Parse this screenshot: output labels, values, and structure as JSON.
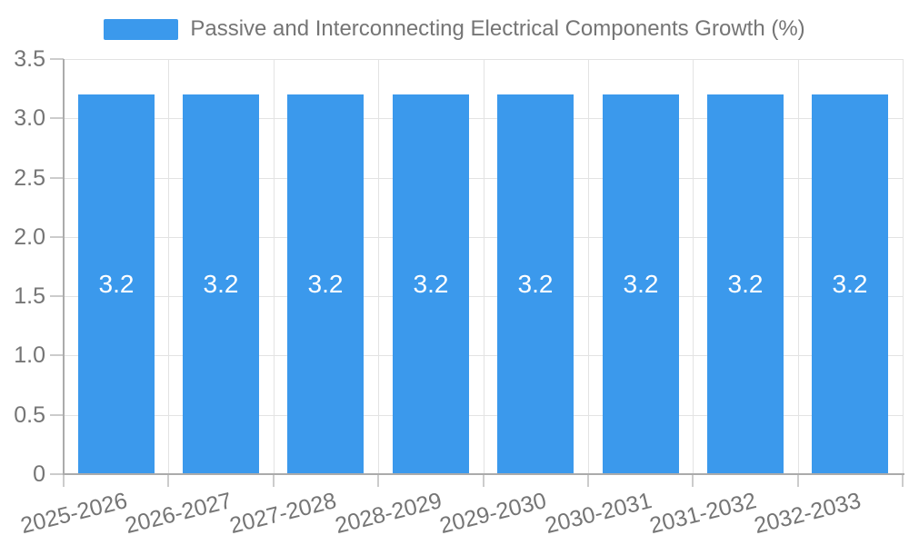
{
  "chart_data": {
    "type": "bar",
    "legend": "Passive and Interconnecting Electrical Components Growth (%)",
    "legend_position": "top-center",
    "categories": [
      "2025-2026",
      "2026-2027",
      "2027-2028",
      "2028-2029",
      "2029-2030",
      "2030-2031",
      "2031-2032",
      "2032-2033"
    ],
    "values": [
      3.2,
      3.2,
      3.2,
      3.2,
      3.2,
      3.2,
      3.2,
      3.2
    ],
    "bar_value_labels": [
      "3.2",
      "3.2",
      "3.2",
      "3.2",
      "3.2",
      "3.2",
      "3.2",
      "3.2"
    ],
    "xlabel": "",
    "ylabel": "",
    "ylim": [
      0,
      3.5
    ],
    "yticks": [
      0,
      0.5,
      1,
      1.5,
      2,
      2.5,
      3,
      3.5
    ],
    "ytick_labels": [
      "0",
      "0.5",
      "1.0",
      "1.5",
      "2.0",
      "2.5",
      "3.0",
      "3.5"
    ],
    "grid": true,
    "colors": {
      "bar": "#3b99ec",
      "bar_label": "#ffffff",
      "text": "#757575",
      "axis_line": "#ababab",
      "tick": "#cccccc",
      "gridline": "#e3e3e3",
      "background": "#ffffff"
    }
  }
}
